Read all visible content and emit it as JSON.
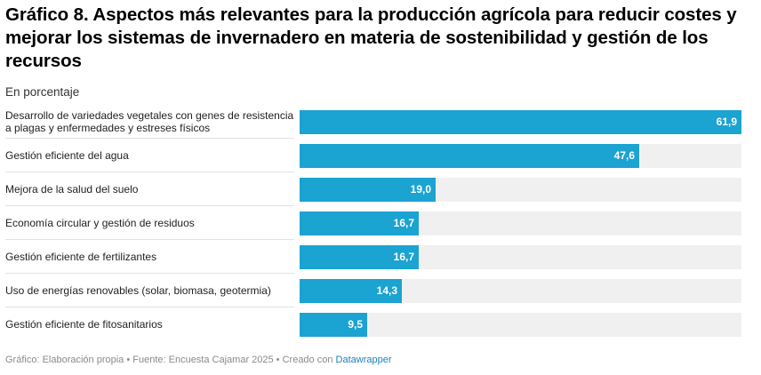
{
  "header": {
    "title": "Gráfico 8. Aspectos más relevantes para la producción agrícola para reducir costes y mejorar los sistemas de invernadero en materia de sostenibilidad y gestión de los recursos",
    "subtitle": "En porcentaje"
  },
  "colors": {
    "bar": "#1ba3d1",
    "track": "#f0f0f0",
    "link": "#1a84b8"
  },
  "chart_data": {
    "type": "bar",
    "orientation": "horizontal",
    "categories": [
      "Desarrollo de variedades vegetales con genes de resistencia a plagas y enfermedades y estreses físicos",
      "Gestión eficiente del agua",
      "Mejora de la salud del suelo",
      "Economía circular y gestión de residuos",
      "Gestión eficiente de fertilizantes",
      "Uso de energías renovables (solar, biomasa, geotermia)",
      "Gestión eficiente de fitosanitarios"
    ],
    "values": [
      61.9,
      47.6,
      19.0,
      16.7,
      16.7,
      14.3,
      9.5
    ],
    "value_labels": [
      "61,9",
      "47,6",
      "19,0",
      "16,7",
      "16,7",
      "14,3",
      "9,5"
    ],
    "xlim": [
      0,
      61.9
    ],
    "title": "Gráfico 8. Aspectos más relevantes para la producción agrícola para reducir costes y mejorar los sistemas de invernadero en materia de sostenibilidad y gestión de los recursos",
    "subtitle": "En porcentaje"
  },
  "footer": {
    "text": "Gráfico: Elaboración propia • Fuente: Encuesta Cajamar 2025 • Creado con ",
    "link_text": "Datawrapper"
  }
}
